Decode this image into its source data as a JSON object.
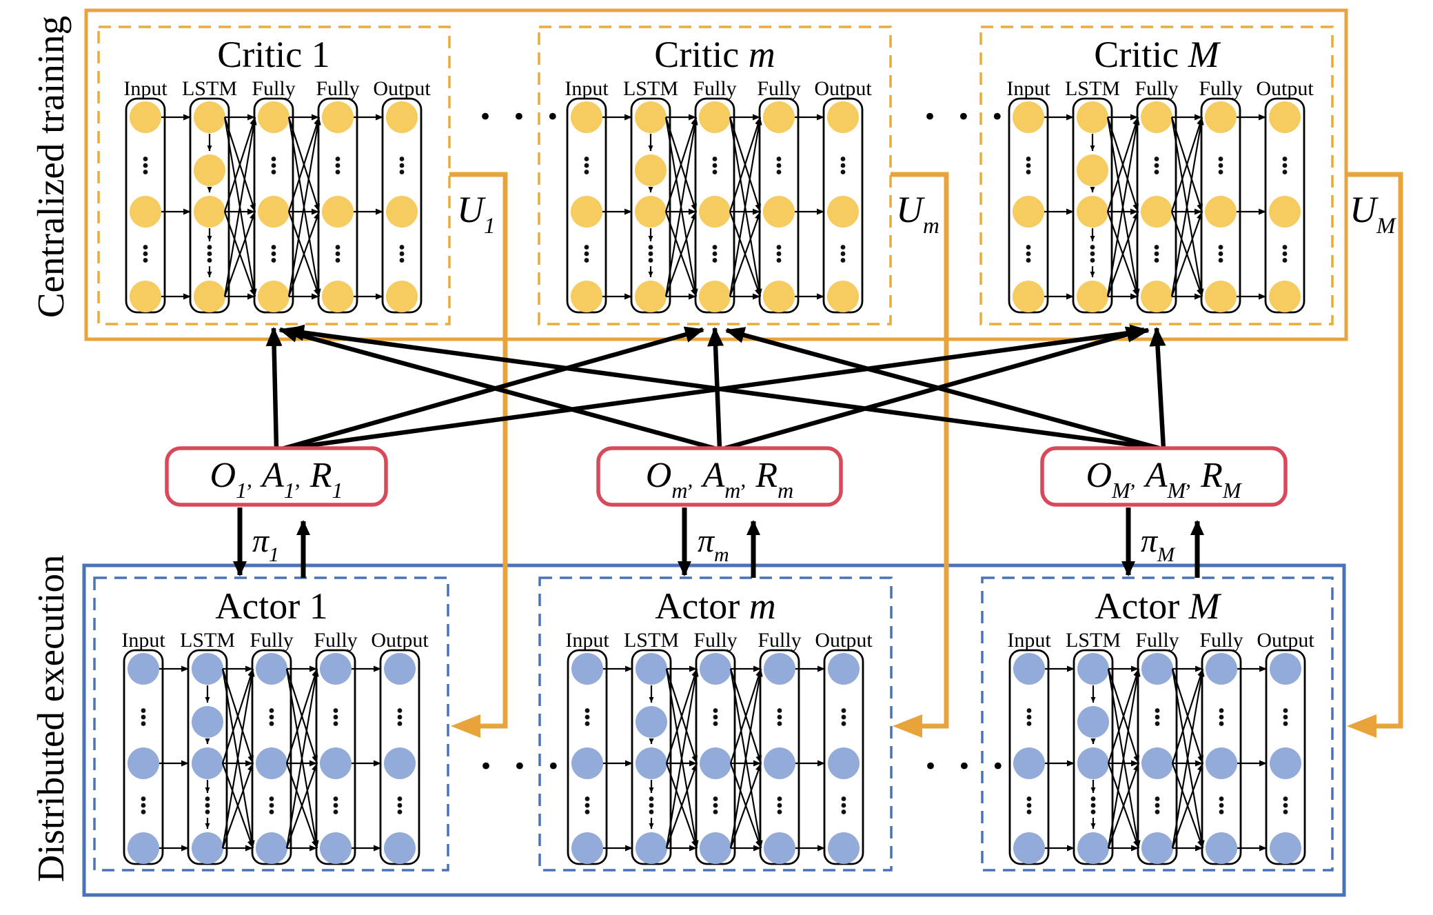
{
  "side_labels": {
    "top_left": "Centralized training",
    "bottom_left": "Distributed execution"
  },
  "critics": [
    {
      "title_prefix": "Critic ",
      "title_var": "1",
      "var_italic": false,
      "columns": [
        "Input",
        "LSTM",
        "Fully",
        "Fully",
        "Output"
      ]
    },
    {
      "title_prefix": "Critic ",
      "title_var": "m",
      "var_italic": true,
      "columns": [
        "Input",
        "LSTM",
        "Fully",
        "Fully",
        "Output"
      ]
    },
    {
      "title_prefix": "Critic ",
      "title_var": "M",
      "var_italic": true,
      "columns": [
        "Input",
        "LSTM",
        "Fully",
        "Fully",
        "Output"
      ]
    }
  ],
  "actors": [
    {
      "title_prefix": "Actor ",
      "title_var": "1",
      "var_italic": false,
      "columns": [
        "Input",
        "LSTM",
        "Fully",
        "Fully",
        "Output"
      ]
    },
    {
      "title_prefix": "Actor ",
      "title_var": "m",
      "var_italic": true,
      "columns": [
        "Input",
        "LSTM",
        "Fully",
        "Fully",
        "Output"
      ]
    },
    {
      "title_prefix": "Actor ",
      "title_var": "M",
      "var_italic": true,
      "columns": [
        "Input",
        "LSTM",
        "Fully",
        "Fully",
        "Output"
      ]
    }
  ],
  "u_labels": [
    {
      "base": "U",
      "sub": "1"
    },
    {
      "base": "U",
      "sub": "m"
    },
    {
      "base": "U",
      "sub": "M"
    }
  ],
  "pi_labels": [
    {
      "base": "π",
      "sub": "1"
    },
    {
      "base": "π",
      "sub": "m"
    },
    {
      "base": "π",
      "sub": "M"
    }
  ],
  "red_boxes": [
    {
      "items": [
        {
          "letter": "O",
          "sub": "1"
        },
        {
          "letter": "A",
          "sub": "1"
        },
        {
          "letter": "R",
          "sub": "1"
        }
      ]
    },
    {
      "items": [
        {
          "letter": "O",
          "sub": "m"
        },
        {
          "letter": "A",
          "sub": "m"
        },
        {
          "letter": "R",
          "sub": "m"
        }
      ]
    },
    {
      "items": [
        {
          "letter": "O",
          "sub": "M"
        },
        {
          "letter": "A",
          "sub": "M"
        },
        {
          "letter": "R",
          "sub": "M"
        }
      ]
    }
  ],
  "punctuation": {
    "item_separator": ","
  },
  "ellipsis": "• • •",
  "colors": {
    "gold_line": "#E8A33B",
    "gold_dash": "#E9AC3C",
    "node_gold": "#F6CB5F",
    "blue_line": "#4A72B6",
    "node_blue": "#93ABD9",
    "red_border": "#D84959",
    "black": "#000000",
    "white": "#FFFFFF"
  }
}
